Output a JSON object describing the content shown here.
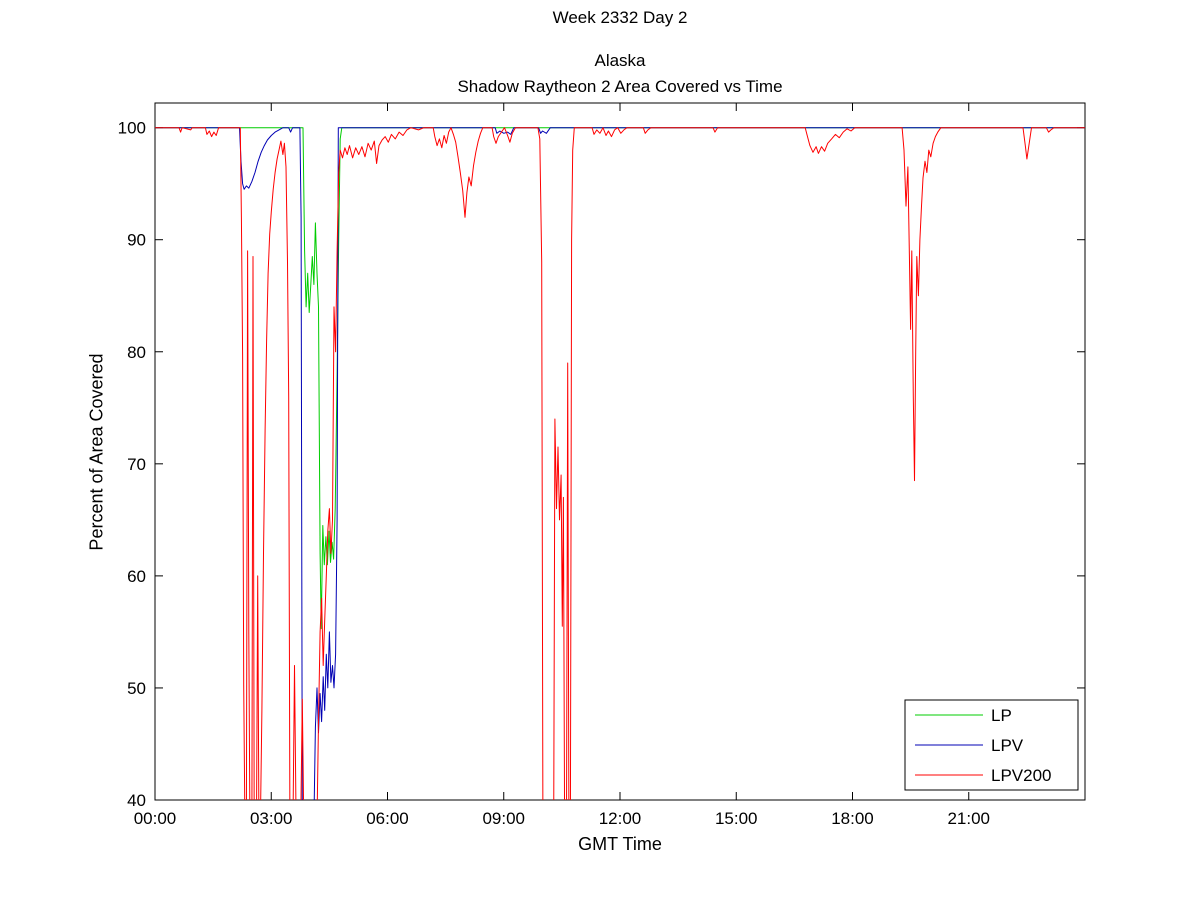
{
  "figure": {
    "suptitle": "Week 2332 Day 2",
    "title_line1": "Alaska",
    "title_line2": "Shadow Raytheon 2 Area Covered vs Time",
    "xlabel": "GMT Time",
    "ylabel": "Percent of Area Covered"
  },
  "chart_data": {
    "type": "line",
    "title": "Alaska - Shadow Raytheon 2 Area Covered vs Time",
    "xlabel": "GMT Time",
    "ylabel": "Percent of Area Covered",
    "xlim": [
      0,
      24
    ],
    "ylim": [
      40,
      102.2
    ],
    "xticks": [
      {
        "value": 0,
        "label": "00:00"
      },
      {
        "value": 3,
        "label": "03:00"
      },
      {
        "value": 6,
        "label": "06:00"
      },
      {
        "value": 9,
        "label": "09:00"
      },
      {
        "value": 12,
        "label": "12:00"
      },
      {
        "value": 15,
        "label": "15:00"
      },
      {
        "value": 18,
        "label": "18:00"
      },
      {
        "value": 21,
        "label": "21:00"
      }
    ],
    "yticks": [
      40,
      50,
      60,
      70,
      80,
      90,
      100
    ],
    "grid": false,
    "legend": {
      "position": "lower right",
      "entries": [
        "LP",
        "LPV",
        "LPV200"
      ]
    },
    "series": [
      {
        "name": "LP",
        "color": "#00cc00",
        "points": [
          [
            0,
            100
          ],
          [
            3.82,
            100
          ],
          [
            3.86,
            89
          ],
          [
            3.9,
            84
          ],
          [
            3.94,
            87
          ],
          [
            3.98,
            83.5
          ],
          [
            4.02,
            86
          ],
          [
            4.06,
            88.5
          ],
          [
            4.1,
            86
          ],
          [
            4.14,
            91.5
          ],
          [
            4.18,
            87
          ],
          [
            4.22,
            84
          ],
          [
            4.26,
            62
          ],
          [
            4.29,
            55.3
          ],
          [
            4.33,
            64.5
          ],
          [
            4.37,
            61
          ],
          [
            4.41,
            63.5
          ],
          [
            4.45,
            61
          ],
          [
            4.49,
            64
          ],
          [
            4.53,
            61.2
          ],
          [
            4.57,
            63
          ],
          [
            4.61,
            61.5
          ],
          [
            4.65,
            66
          ],
          [
            4.7,
            78
          ],
          [
            4.74,
            90
          ],
          [
            4.78,
            99
          ],
          [
            4.82,
            100
          ],
          [
            24,
            100
          ]
        ]
      },
      {
        "name": "LPV",
        "color": "#0000b4",
        "points": [
          [
            0,
            100
          ],
          [
            2.18,
            100
          ],
          [
            2.22,
            97
          ],
          [
            2.26,
            95
          ],
          [
            2.3,
            94.5
          ],
          [
            2.36,
            94.8
          ],
          [
            2.42,
            94.6
          ],
          [
            2.5,
            95.2
          ],
          [
            2.58,
            96
          ],
          [
            2.66,
            97
          ],
          [
            2.74,
            97.8
          ],
          [
            2.82,
            98.4
          ],
          [
            2.9,
            98.9
          ],
          [
            3.0,
            99.3
          ],
          [
            3.1,
            99.6
          ],
          [
            3.2,
            99.8
          ],
          [
            3.3,
            100
          ],
          [
            3.45,
            100
          ],
          [
            3.5,
            99.6
          ],
          [
            3.55,
            100
          ],
          [
            3.74,
            100
          ],
          [
            3.77,
            92
          ],
          [
            3.8,
            38
          ],
          [
            4.1,
            38
          ],
          [
            4.14,
            46.5
          ],
          [
            4.18,
            50
          ],
          [
            4.22,
            46
          ],
          [
            4.26,
            49.5
          ],
          [
            4.3,
            47
          ],
          [
            4.34,
            51
          ],
          [
            4.38,
            48
          ],
          [
            4.42,
            53
          ],
          [
            4.46,
            50
          ],
          [
            4.5,
            55
          ],
          [
            4.54,
            50.5
          ],
          [
            4.58,
            52
          ],
          [
            4.62,
            50
          ],
          [
            4.66,
            53
          ],
          [
            4.7,
            65
          ],
          [
            4.73,
            100
          ],
          [
            8.78,
            100
          ],
          [
            8.82,
            99.5
          ],
          [
            8.9,
            99.7
          ],
          [
            9.0,
            99.5
          ],
          [
            9.1,
            99.6
          ],
          [
            9.18,
            99.4
          ],
          [
            9.26,
            100
          ],
          [
            9.9,
            100
          ],
          [
            9.95,
            99.5
          ],
          [
            10.0,
            99.7
          ],
          [
            10.1,
            99.5
          ],
          [
            10.2,
            100
          ],
          [
            24,
            100
          ]
        ]
      },
      {
        "name": "LPV200",
        "color": "#ff0000",
        "points": [
          [
            0,
            100
          ],
          [
            0.62,
            100
          ],
          [
            0.66,
            99.6
          ],
          [
            0.7,
            100
          ],
          [
            0.92,
            99.8
          ],
          [
            0.96,
            100
          ],
          [
            1.3,
            100
          ],
          [
            1.34,
            99.4
          ],
          [
            1.4,
            99.7
          ],
          [
            1.46,
            99.2
          ],
          [
            1.52,
            99.6
          ],
          [
            1.58,
            99.3
          ],
          [
            1.64,
            100
          ],
          [
            2.2,
            100
          ],
          [
            2.23,
            92
          ],
          [
            2.26,
            79.7
          ],
          [
            2.29,
            50.3
          ],
          [
            2.32,
            38
          ],
          [
            2.36,
            38
          ],
          [
            2.39,
            89
          ],
          [
            2.42,
            55
          ],
          [
            2.45,
            38
          ],
          [
            2.5,
            38
          ],
          [
            2.53,
            88.5
          ],
          [
            2.56,
            38
          ],
          [
            2.62,
            38
          ],
          [
            2.65,
            60
          ],
          [
            2.68,
            38
          ],
          [
            2.72,
            38
          ],
          [
            2.76,
            48
          ],
          [
            2.8,
            62
          ],
          [
            2.84,
            73
          ],
          [
            2.88,
            81
          ],
          [
            2.92,
            87
          ],
          [
            2.96,
            90.5
          ],
          [
            3.0,
            92.5
          ],
          [
            3.05,
            94.5
          ],
          [
            3.1,
            96
          ],
          [
            3.15,
            97.2
          ],
          [
            3.2,
            98
          ],
          [
            3.25,
            98.8
          ],
          [
            3.3,
            97.6
          ],
          [
            3.34,
            98.6
          ],
          [
            3.38,
            96.5
          ],
          [
            3.42,
            88
          ],
          [
            3.45,
            76
          ],
          [
            3.48,
            38
          ],
          [
            3.56,
            38
          ],
          [
            3.6,
            52
          ],
          [
            3.64,
            38
          ],
          [
            3.76,
            38
          ],
          [
            3.8,
            49
          ],
          [
            3.84,
            38
          ],
          [
            4.18,
            38
          ],
          [
            4.22,
            47
          ],
          [
            4.26,
            55
          ],
          [
            4.3,
            58
          ],
          [
            4.34,
            52
          ],
          [
            4.38,
            56
          ],
          [
            4.42,
            60
          ],
          [
            4.46,
            64
          ],
          [
            4.5,
            66
          ],
          [
            4.54,
            62
          ],
          [
            4.58,
            65
          ],
          [
            4.62,
            84
          ],
          [
            4.66,
            80
          ],
          [
            4.7,
            89
          ],
          [
            4.74,
            96
          ],
          [
            4.78,
            98
          ],
          [
            4.84,
            97.3
          ],
          [
            4.9,
            98.2
          ],
          [
            4.96,
            97.6
          ],
          [
            5.02,
            98.4
          ],
          [
            5.1,
            97.3
          ],
          [
            5.18,
            98.2
          ],
          [
            5.26,
            97.6
          ],
          [
            5.34,
            98.3
          ],
          [
            5.42,
            97.4
          ],
          [
            5.5,
            98.6
          ],
          [
            5.58,
            98
          ],
          [
            5.66,
            98.8
          ],
          [
            5.72,
            96.8
          ],
          [
            5.78,
            98.4
          ],
          [
            5.86,
            98.9
          ],
          [
            5.94,
            99.2
          ],
          [
            6.02,
            98.7
          ],
          [
            6.1,
            99.4
          ],
          [
            6.2,
            99
          ],
          [
            6.3,
            99.6
          ],
          [
            6.4,
            99.3
          ],
          [
            6.5,
            99.8
          ],
          [
            6.6,
            100
          ],
          [
            6.8,
            99.8
          ],
          [
            6.94,
            100
          ],
          [
            7.18,
            100
          ],
          [
            7.22,
            99.2
          ],
          [
            7.28,
            98.4
          ],
          [
            7.34,
            99
          ],
          [
            7.4,
            98.2
          ],
          [
            7.46,
            99.3
          ],
          [
            7.52,
            98.6
          ],
          [
            7.58,
            99.6
          ],
          [
            7.64,
            100
          ],
          [
            7.7,
            99.4
          ],
          [
            7.76,
            98.7
          ],
          [
            7.82,
            97.4
          ],
          [
            7.88,
            96
          ],
          [
            7.94,
            94.4
          ],
          [
            8.0,
            92
          ],
          [
            8.05,
            94.2
          ],
          [
            8.1,
            95.6
          ],
          [
            8.16,
            94.8
          ],
          [
            8.22,
            96.6
          ],
          [
            8.28,
            97.8
          ],
          [
            8.34,
            98.8
          ],
          [
            8.4,
            99.5
          ],
          [
            8.46,
            100
          ],
          [
            8.7,
            100
          ],
          [
            8.74,
            99.2
          ],
          [
            8.8,
            98.6
          ],
          [
            8.86,
            99.2
          ],
          [
            8.94,
            99.6
          ],
          [
            9.02,
            100
          ],
          [
            9.1,
            99.3
          ],
          [
            9.16,
            98.7
          ],
          [
            9.22,
            99.5
          ],
          [
            9.3,
            100
          ],
          [
            9.88,
            100
          ],
          [
            9.93,
            99
          ],
          [
            9.98,
            88
          ],
          [
            10.01,
            38
          ],
          [
            10.29,
            38
          ],
          [
            10.32,
            74
          ],
          [
            10.36,
            66
          ],
          [
            10.4,
            71.5
          ],
          [
            10.44,
            65
          ],
          [
            10.48,
            69
          ],
          [
            10.51,
            55.5
          ],
          [
            10.54,
            67
          ],
          [
            10.57,
            38
          ],
          [
            10.62,
            38
          ],
          [
            10.65,
            79
          ],
          [
            10.68,
            38
          ],
          [
            10.72,
            38
          ],
          [
            10.75,
            90
          ],
          [
            10.78,
            98
          ],
          [
            10.82,
            100
          ],
          [
            11.28,
            100
          ],
          [
            11.33,
            99.4
          ],
          [
            11.4,
            99.8
          ],
          [
            11.48,
            99.5
          ],
          [
            11.56,
            100
          ],
          [
            11.64,
            99.3
          ],
          [
            11.7,
            99.7
          ],
          [
            11.78,
            99.2
          ],
          [
            11.86,
            99.8
          ],
          [
            11.94,
            100
          ],
          [
            12.02,
            99.5
          ],
          [
            12.1,
            99.8
          ],
          [
            12.18,
            100
          ],
          [
            12.6,
            100
          ],
          [
            12.65,
            99.5
          ],
          [
            12.72,
            99.8
          ],
          [
            12.8,
            100
          ],
          [
            14.4,
            100
          ],
          [
            14.45,
            99.6
          ],
          [
            14.52,
            100
          ],
          [
            16.78,
            100
          ],
          [
            16.84,
            99.2
          ],
          [
            16.9,
            98.4
          ],
          [
            16.98,
            97.8
          ],
          [
            17.06,
            98.3
          ],
          [
            17.12,
            97.7
          ],
          [
            17.2,
            98.3
          ],
          [
            17.28,
            97.9
          ],
          [
            17.36,
            98.6
          ],
          [
            17.46,
            99
          ],
          [
            17.56,
            99.4
          ],
          [
            17.66,
            99.1
          ],
          [
            17.76,
            99.6
          ],
          [
            17.86,
            99.9
          ],
          [
            17.96,
            99.7
          ],
          [
            18.06,
            100
          ],
          [
            19.28,
            100
          ],
          [
            19.33,
            98
          ],
          [
            19.38,
            93
          ],
          [
            19.43,
            96.5
          ],
          [
            19.47,
            88
          ],
          [
            19.5,
            82
          ],
          [
            19.53,
            89
          ],
          [
            19.57,
            76
          ],
          [
            19.6,
            68.5
          ],
          [
            19.63,
            80
          ],
          [
            19.66,
            88.5
          ],
          [
            19.7,
            85
          ],
          [
            19.74,
            90
          ],
          [
            19.78,
            93
          ],
          [
            19.82,
            95.5
          ],
          [
            19.87,
            97
          ],
          [
            19.92,
            96
          ],
          [
            19.97,
            98
          ],
          [
            20.02,
            97.4
          ],
          [
            20.08,
            98.6
          ],
          [
            20.14,
            99.2
          ],
          [
            20.2,
            99.6
          ],
          [
            20.28,
            100
          ],
          [
            22.4,
            100
          ],
          [
            22.46,
            98.4
          ],
          [
            22.5,
            97.2
          ],
          [
            22.56,
            98.6
          ],
          [
            22.62,
            100
          ],
          [
            23.0,
            100
          ],
          [
            23.06,
            99.6
          ],
          [
            23.12,
            99.8
          ],
          [
            23.2,
            100
          ],
          [
            24,
            100
          ]
        ]
      }
    ]
  }
}
